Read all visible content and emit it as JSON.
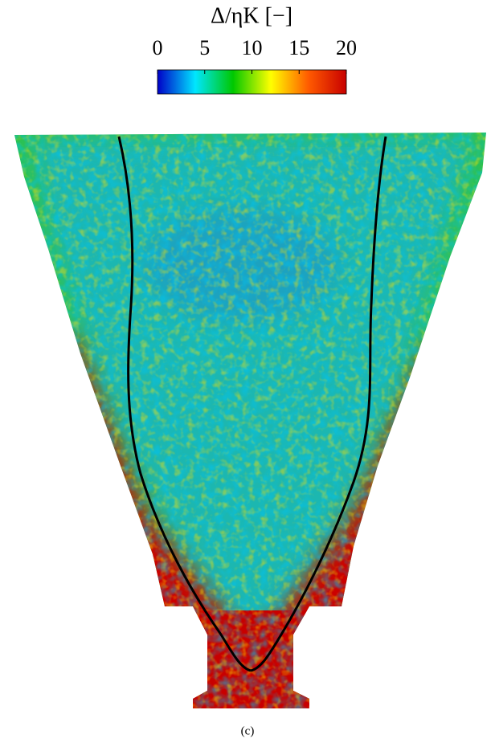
{
  "chart_data": {
    "type": "colormap",
    "title": "Δ/ηK  [−]",
    "clim": [
      0,
      20
    ],
    "ticks": [
      0,
      5,
      10,
      15,
      20
    ],
    "colors": [
      "#0000c8",
      "#00e6ff",
      "#00c800",
      "#ffff00",
      "#ff5a00",
      "#c80000"
    ],
    "caption": "(c)"
  }
}
